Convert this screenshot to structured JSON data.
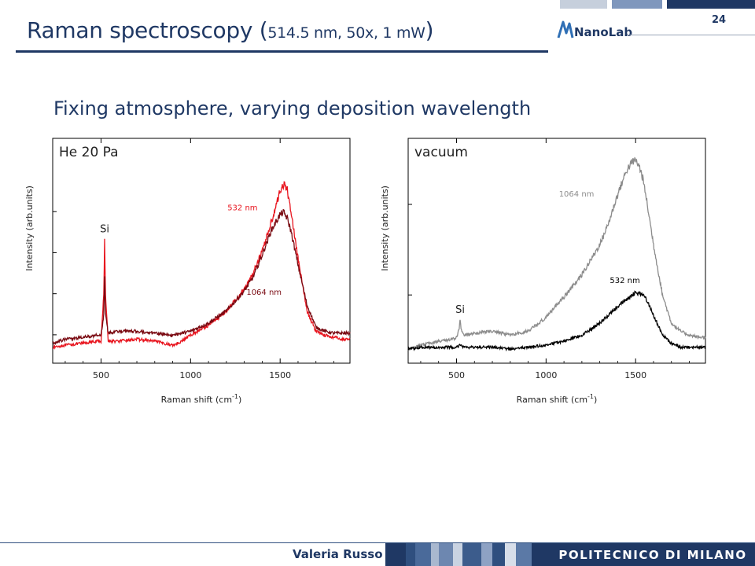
{
  "slide": {
    "title_main": "Raman spectroscopy (",
    "title_params": "514.5 nm, 50x, 1 mW",
    "title_close": ")",
    "page_number": "24",
    "logo_text": "NanoLab",
    "subtitle": "Fixing atmosphere, varying deposition wavelength",
    "author": "Valeria Russo",
    "institution": "POLITECNICO DI MILANO"
  },
  "colors": {
    "navy": "#1f3864",
    "red_532": "#e8141e",
    "darkred_1064": "#7a0a12",
    "gray_1064": "#8c8c8c",
    "black_532": "#000000"
  },
  "chart_data": [
    {
      "type": "line",
      "title": "He 20 Pa",
      "xlabel": "Raman shift (cm",
      "xlabel_sup": "-1",
      "xlabel_close": ")",
      "ylabel": "Intensity (arb.units)",
      "xlim": [
        230,
        1890
      ],
      "ylim": [
        0,
        1
      ],
      "x_ticks": [
        500,
        1000,
        1500
      ],
      "x_tick_labels": [
        "500",
        "1000",
        "1500"
      ],
      "y_ticks_labeled": false,
      "peak_label": "Si",
      "peak_label_x": 520,
      "legend": "inline labels",
      "series": [
        {
          "name": "532 nm",
          "color": "#e8141e",
          "label_x": 1290,
          "label_y": 0.72,
          "x": [
            230,
            300,
            400,
            480,
            500,
            515,
            520,
            525,
            540,
            600,
            700,
            800,
            900,
            950,
            1000,
            1100,
            1200,
            1300,
            1350,
            1400,
            1450,
            1480,
            1500,
            1520,
            1540,
            1560,
            1600,
            1650,
            1700,
            1750,
            1800,
            1850,
            1890
          ],
          "y": [
            0.04,
            0.05,
            0.06,
            0.07,
            0.07,
            0.3,
            0.58,
            0.3,
            0.07,
            0.07,
            0.08,
            0.07,
            0.05,
            0.07,
            0.1,
            0.15,
            0.22,
            0.33,
            0.41,
            0.52,
            0.66,
            0.75,
            0.82,
            0.85,
            0.82,
            0.72,
            0.48,
            0.22,
            0.12,
            0.1,
            0.09,
            0.08,
            0.08
          ]
        },
        {
          "name": "1064 nm",
          "color": "#7a0a12",
          "label_x": 1410,
          "label_y": 0.3,
          "x": [
            230,
            300,
            400,
            480,
            500,
            515,
            520,
            525,
            540,
            600,
            700,
            800,
            900,
            1000,
            1100,
            1200,
            1300,
            1350,
            1400,
            1450,
            1500,
            1520,
            1540,
            1560,
            1600,
            1650,
            1700,
            1750,
            1800,
            1850,
            1890
          ],
          "y": [
            0.06,
            0.08,
            0.09,
            0.1,
            0.1,
            0.2,
            0.4,
            0.2,
            0.11,
            0.12,
            0.12,
            0.11,
            0.1,
            0.12,
            0.16,
            0.22,
            0.32,
            0.39,
            0.5,
            0.62,
            0.7,
            0.71,
            0.68,
            0.62,
            0.45,
            0.25,
            0.14,
            0.12,
            0.11,
            0.11,
            0.11
          ]
        }
      ]
    },
    {
      "type": "line",
      "title": "vacuum",
      "xlabel": "Raman shift (cm",
      "xlabel_sup": "-1",
      "xlabel_close": ")",
      "ylabel": "Intensity (arb.units)",
      "xlim": [
        230,
        1890
      ],
      "ylim": [
        0,
        1
      ],
      "x_ticks": [
        500,
        1000,
        1500
      ],
      "x_tick_labels": [
        "500",
        "1000",
        "1500"
      ],
      "y_ticks_labeled": false,
      "peak_label": "Si",
      "peak_label_x": 520,
      "legend": "inline labels",
      "series": [
        {
          "name": "1064 nm",
          "color": "#8c8c8c",
          "label_x": 1170,
          "label_y": 0.79,
          "x": [
            230,
            300,
            400,
            480,
            500,
            515,
            520,
            525,
            540,
            600,
            700,
            800,
            900,
            1000,
            1100,
            1200,
            1300,
            1350,
            1400,
            1450,
            1480,
            1500,
            1520,
            1540,
            1560,
            1600,
            1650,
            1700,
            1750,
            1800,
            1850,
            1890
          ],
          "y": [
            0.03,
            0.05,
            0.07,
            0.08,
            0.09,
            0.13,
            0.18,
            0.13,
            0.1,
            0.11,
            0.12,
            0.1,
            0.12,
            0.19,
            0.29,
            0.4,
            0.55,
            0.66,
            0.8,
            0.92,
            0.96,
            0.97,
            0.94,
            0.88,
            0.78,
            0.55,
            0.3,
            0.16,
            0.12,
            0.1,
            0.09,
            0.09
          ]
        },
        {
          "name": "532 nm",
          "color": "#000000",
          "label_x": 1440,
          "label_y": 0.36,
          "x": [
            230,
            300,
            400,
            500,
            520,
            540,
            600,
            700,
            800,
            900,
            1000,
            1100,
            1200,
            1300,
            1350,
            1400,
            1450,
            1500,
            1520,
            1540,
            1560,
            1600,
            1650,
            1700,
            1750,
            1800,
            1850,
            1890
          ],
          "y": [
            0.03,
            0.04,
            0.04,
            0.04,
            0.05,
            0.04,
            0.04,
            0.04,
            0.03,
            0.04,
            0.05,
            0.07,
            0.1,
            0.16,
            0.2,
            0.24,
            0.28,
            0.31,
            0.31,
            0.3,
            0.28,
            0.2,
            0.1,
            0.06,
            0.04,
            0.04,
            0.04,
            0.04
          ]
        }
      ]
    }
  ]
}
